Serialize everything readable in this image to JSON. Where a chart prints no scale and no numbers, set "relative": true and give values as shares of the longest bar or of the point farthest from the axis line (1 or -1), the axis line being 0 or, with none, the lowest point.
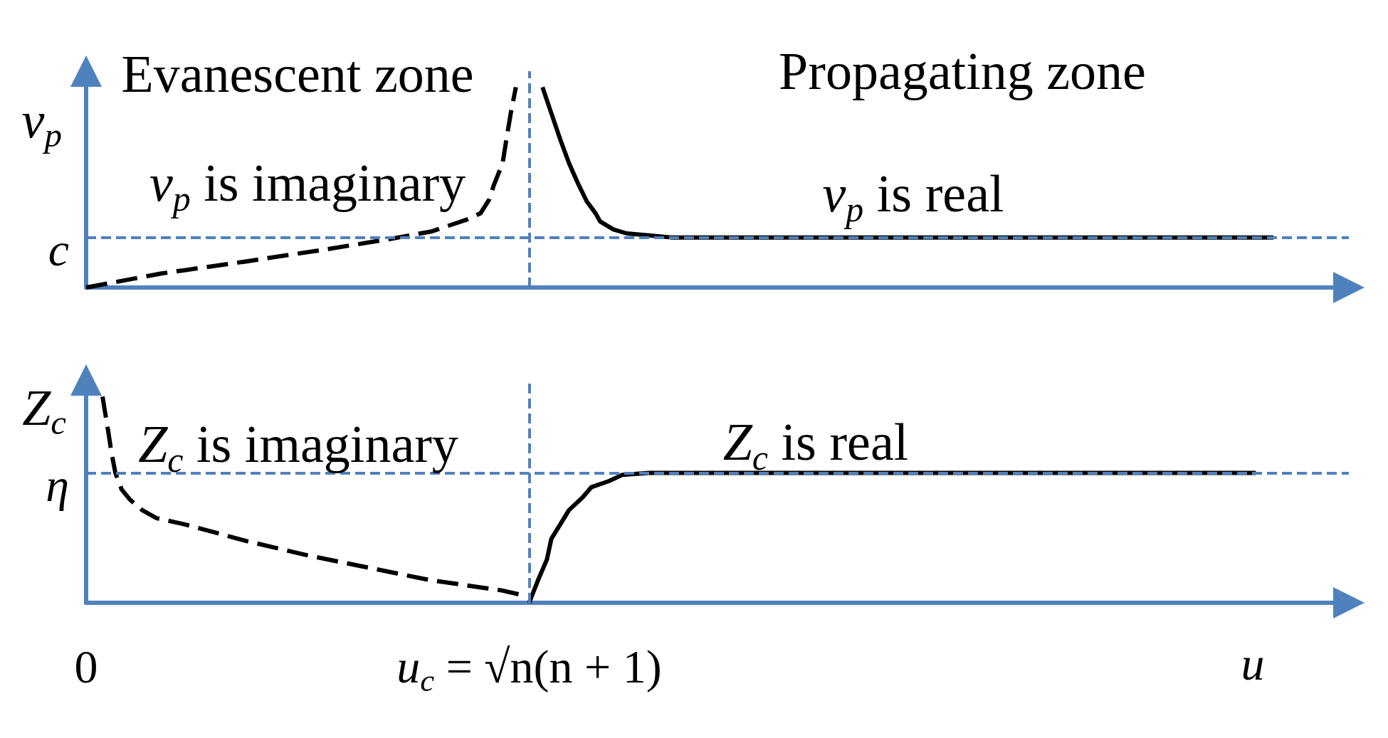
{
  "chart_data": [
    {
      "type": "line",
      "relative": true,
      "ylabel": "v$_{p}$",
      "xlim": [
        0,
        2.85
      ],
      "tick_labels": false,
      "marker": "none",
      "series": [
        {
          "color": "#000000",
          "line_style": "dashed",
          "x": [
            0,
            0.17,
            0.36,
            0.54,
            0.68,
            0.78,
            0.82,
            0.86,
            0.89,
            0.91,
            0.92,
            0.94,
            0.95,
            0.96,
            0.97
          ],
          "values": [
            0,
            0.07,
            0.13,
            0.19,
            0.24,
            0.28,
            0.31,
            0.34,
            0.37,
            0.44,
            0.51,
            0.62,
            0.76,
            0.89,
            1
          ]
        },
        {
          "color": "#000000",
          "line_style": "solid",
          "x": [
            1.03,
            1.05,
            1.07,
            1.09,
            1.11,
            1.13,
            1.15,
            1.16,
            1.19,
            1.22,
            1.27,
            1.32,
            2.68
          ],
          "values": [
            1,
            0.87,
            0.74,
            0.62,
            0.52,
            0.43,
            0.37,
            0.33,
            0.29,
            0.27,
            0.26,
            0.25,
            0.25
          ]
        }
      ],
      "ref_lines": [
        {
          "axis": "x",
          "value": 1,
          "color": "#4f81bd",
          "line_style": "dashed"
        },
        {
          "axis": "y",
          "value": 0.25,
          "label": "c",
          "color": "#4f81bd",
          "line_style": "dashed"
        }
      ],
      "annotations": [
        "Evanescent zone",
        "Propagating zone",
        "v$_{p}$ is imaginary",
        "v$_{p}$ is real"
      ]
    },
    {
      "type": "line",
      "relative": true,
      "ylabel": "Z$_{c}$",
      "xlabel": "u",
      "xlim": [
        0,
        2.85
      ],
      "xticks": [
        0,
        {
          "value": 1,
          "label": "u$_{c}$ = √n(n + 1)"
        }
      ],
      "tick_labels": "x",
      "marker": "none",
      "series": [
        {
          "color": "#000000",
          "line_style": "dashed",
          "x": [
            0.037,
            0.043,
            0.05,
            0.057,
            0.066,
            0.08,
            0.099,
            0.126,
            0.159,
            0.223,
            0.361,
            0.5,
            0.638,
            0.776,
            0.938,
            0.979
          ],
          "values": [
            1,
            0.92,
            0.83,
            0.73,
            0.63,
            0.55,
            0.5,
            0.45,
            0.41,
            0.38,
            0.3,
            0.23,
            0.17,
            0.11,
            0.06,
            0.04
          ]
        },
        {
          "color": "#000000",
          "line_style": "solid",
          "x": [
            1,
            1.02,
            1.04,
            1.05,
            1.07,
            1.09,
            1.12,
            1.14,
            1.18,
            1.21,
            1.27,
            1.32,
            2.64
          ],
          "values": [
            0,
            0.11,
            0.21,
            0.31,
            0.38,
            0.45,
            0.51,
            0.56,
            0.59,
            0.62,
            0.63,
            0.63,
            0.63
          ]
        }
      ],
      "ref_lines": [
        {
          "axis": "x",
          "value": 1,
          "color": "#4f81bd",
          "line_style": "dashed"
        },
        {
          "axis": "y",
          "value": 0.63,
          "label": "η",
          "color": "#4f81bd",
          "line_style": "dashed"
        }
      ],
      "annotations": [
        "Z$_{c}$ is imaginary",
        "Z$_{c}$ is real"
      ]
    }
  ]
}
